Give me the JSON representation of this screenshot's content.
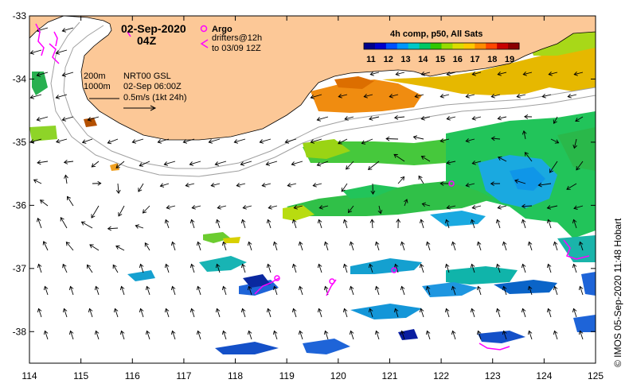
{
  "header": {
    "date": "02-Sep-2020",
    "time": "04Z",
    "argo_label": "Argo",
    "drifters_line1": "drifters@12h",
    "drifters_line2": "to 03/09 12Z"
  },
  "colorbar": {
    "title": "4h comp, p50, All Sats",
    "ticks": [
      "11",
      "12",
      "13",
      "14",
      "15",
      "16",
      "17",
      "18",
      "19"
    ],
    "colors": [
      "#00008b",
      "#0000cd",
      "#0050ff",
      "#0096ff",
      "#00c8c8",
      "#00c864",
      "#32c800",
      "#96dc00",
      "#dcdc00",
      "#ffc800",
      "#ff8c00",
      "#ff4600",
      "#c80000",
      "#8b0000"
    ]
  },
  "legend": {
    "depth1": "200m",
    "depth2": "1000m",
    "product": "NRT00 GSL",
    "valid": "02-Sep 06:00Z",
    "scale": "0.5m/s (1kt 24h)"
  },
  "axes": {
    "x_ticks": [
      "114",
      "115",
      "116",
      "117",
      "118",
      "119",
      "120",
      "121",
      "122",
      "123",
      "124",
      "125"
    ],
    "y_ticks": [
      "-33",
      "-34",
      "-35",
      "-36",
      "-37",
      "-38"
    ],
    "x_range": [
      114,
      125
    ],
    "y_range": [
      -33,
      -38.5
    ]
  },
  "credit": "©  IMOS 05-Sep-2020 11:48 Hobart",
  "colors": {
    "land": "#fcc897",
    "argo": "#ff00ff",
    "drifter": "#ff00ff",
    "isobath": "#a0a0a0",
    "arrow": "#000000"
  }
}
